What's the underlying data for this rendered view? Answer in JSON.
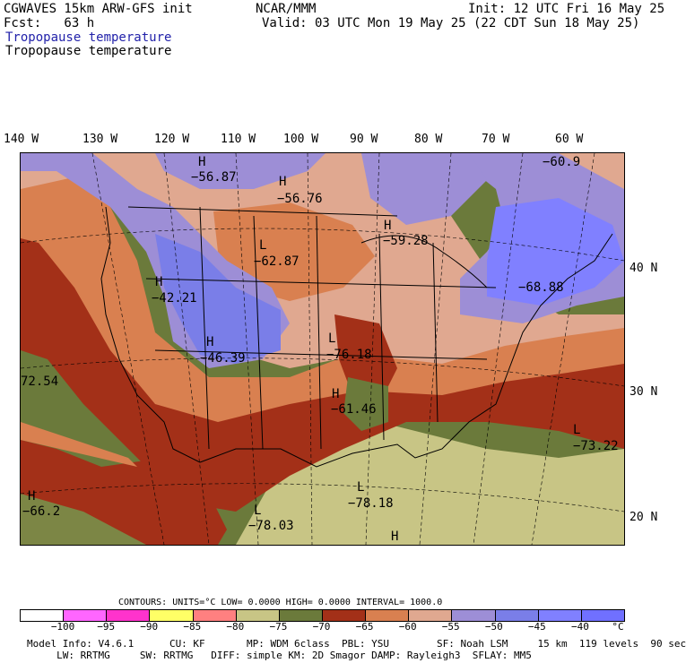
{
  "header": {
    "title_left": "CGWAVES 15km ARW-GFS init",
    "center": "NCAR/MMM",
    "init": "Init: 12 UTC Fri 16 May 25",
    "fcst": "Fcst:   63 h",
    "valid": "Valid: 03 UTC Mon 19 May 25 (22 CDT Sun 18 May 25)",
    "field_blue": "Tropopause temperature",
    "field_black": "Tropopause temperature"
  },
  "axes": {
    "lon_labels": [
      "140 W",
      "130 W",
      "120 W",
      "110 W",
      "100 W",
      "90 W",
      "80 W",
      "70 W",
      "60 W"
    ],
    "lat_labels": [
      "40 N",
      "30 N",
      "20 N"
    ]
  },
  "map_labels": [
    {
      "text": "H",
      "name": "high-marker-nw"
    },
    {
      "text": "−56.87",
      "name": "value-nw"
    },
    {
      "text": "H",
      "name": "high-marker-north"
    },
    {
      "text": "−56.76",
      "name": "value-north"
    },
    {
      "text": "H",
      "name": "high-marker-greatlakes"
    },
    {
      "text": "−59.28",
      "name": "value-greatlakes"
    },
    {
      "text": "−60.9",
      "name": "value-ne-corner"
    },
    {
      "text": "L",
      "name": "low-marker-plains"
    },
    {
      "text": "−62.87",
      "name": "value-plains"
    },
    {
      "text": "H",
      "name": "high-marker-west"
    },
    {
      "text": "−42.21",
      "name": "value-west"
    },
    {
      "text": "H",
      "name": "high-marker-rockies"
    },
    {
      "text": "−46.39",
      "name": "value-rockies"
    },
    {
      "text": "L",
      "name": "low-marker-midwest"
    },
    {
      "text": "−76.18",
      "name": "value-midwest"
    },
    {
      "text": "H",
      "name": "high-marker-south"
    },
    {
      "text": "−61.46",
      "name": "value-south"
    },
    {
      "text": "−68.88",
      "name": "value-northeast"
    },
    {
      "text": "72.54",
      "name": "value-pacific"
    },
    {
      "text": "L",
      "name": "low-marker-atlantic"
    },
    {
      "text": "−73.22",
      "name": "value-atlantic"
    },
    {
      "text": "L",
      "name": "low-marker-gulf"
    },
    {
      "text": "−78.18",
      "name": "value-gulf"
    },
    {
      "text": "L",
      "name": "low-marker-mexico"
    },
    {
      "text": "−78.03",
      "name": "value-mexico"
    },
    {
      "text": "H",
      "name": "high-marker-pacific-sw"
    },
    {
      "text": "−66.2",
      "name": "value-pacific-sw"
    },
    {
      "text": "H",
      "name": "high-marker-south-bottom"
    }
  ],
  "contours": {
    "label": "CONTOURS:  UNITS=°C  LOW=  0.0000      HIGH=  0.0000      INTERVAL=    1000.0"
  },
  "colorbar": {
    "colors": [
      "#ffffff",
      "#ff66ff",
      "#ff33cc",
      "#ffff66",
      "#ff8080",
      "#c8c585",
      "#6b7a3b",
      "#a33018",
      "#d98050",
      "#e0a890",
      "#9d8ed6",
      "#7a7ee8",
      "#8080ff",
      "#7070ff"
    ],
    "ticks": [
      "−100",
      "−95",
      "−90",
      "−85",
      "−80",
      "−75",
      "−70",
      "−65",
      "−60",
      "−55",
      "−50",
      "−45",
      "−40",
      "°C"
    ]
  },
  "footer": {
    "line1": "Model Info: V4.6.1      CU: KF       MP: WDM 6class  PBL: YSU        SF: Noah LSM     15 km  119 levels  90 sec",
    "line2": "     LW: RRTMG     SW: RRTMG   DIFF: simple KM: 2D Smagor DAMP: Rayleigh3  SFLAY: MM5"
  }
}
